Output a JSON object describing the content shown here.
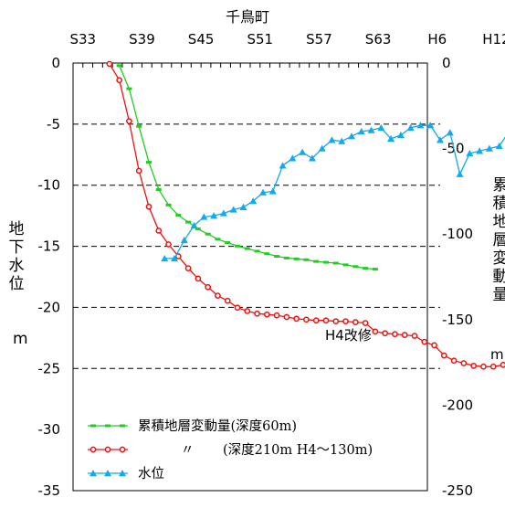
{
  "chart_data": {
    "type": "line",
    "title": "千鳥町",
    "top_ticks": [
      "S33",
      "S39",
      "S45",
      "S51",
      "S57",
      "S63",
      "H6",
      "H12"
    ],
    "left_axis": {
      "label_chars": [
        "地",
        "下",
        "水",
        "位"
      ],
      "unit": "m",
      "range": [
        -35,
        0
      ],
      "ticks": [
        "0",
        "-5",
        "-10",
        "-15",
        "-20",
        "-25",
        "-30",
        "-35"
      ]
    },
    "right_axis": {
      "label_chars": [
        "累",
        "積",
        "地",
        "層",
        "変",
        "動",
        "量"
      ],
      "unit": "mm",
      "range": [
        -250,
        0
      ],
      "ticks": [
        "0",
        "-50",
        "-100",
        "-150",
        "-200",
        "-250"
      ]
    },
    "x_range": [
      1957,
      1993
    ],
    "grid_y": [
      -5,
      -10,
      -15,
      -20,
      -25
    ],
    "annotation": "H4改修",
    "legend_position": "bottom-left",
    "series": [
      {
        "name": "累積地層変動量(深度60m)",
        "color": "#22cc22",
        "marker": "dash",
        "axis": "right",
        "x": [
          1961.7,
          1962.7,
          1963.7,
          1964.7,
          1965.7,
          1966.7,
          1967.7,
          1968.7,
          1969.7,
          1970.7,
          1971.7,
          1972.7,
          1973.7,
          1974.7,
          1975.7,
          1976.7,
          1977.7,
          1978.7,
          1979.7,
          1980.7,
          1981.7,
          1982.7,
          1983.7,
          1984.7,
          1985.7,
          1986.7,
          1987.7
        ],
        "y": [
          -1.5,
          -15,
          -37,
          -58,
          -74,
          -83,
          -89,
          -93,
          -97,
          -100,
          -103,
          -105,
          -107,
          -108.5,
          -110,
          -111.5,
          -113,
          -114,
          -114.5,
          -115,
          -116,
          -116.5,
          -117,
          -118,
          -119,
          -120,
          -120.5
        ]
      },
      {
        "name": "〃",
        "legend_detail": "(深度210m H4〜130m)",
        "color": "#ee1111",
        "marker": "circle",
        "axis": "right",
        "x": [
          1960.7,
          1961.7,
          1962.7,
          1963.7,
          1964.7,
          1965.7,
          1966.7,
          1967.7,
          1968.7,
          1969.7,
          1970.7,
          1971.7,
          1972.7,
          1973.7,
          1974.7,
          1975.7,
          1976.7,
          1977.7,
          1978.7,
          1979.7,
          1980.7,
          1981.7,
          1982.7,
          1983.7,
          1984.7,
          1985.7,
          1986.7,
          1987.7,
          1988.7,
          1989.7,
          1990.7,
          1991.7,
          1992.7,
          1993.7,
          1994.7,
          1995.7,
          1996.7,
          1997.7,
          1998.7,
          1999.7,
          2000.7,
          2001.7,
          2002.7,
          2003.7,
          2004.7,
          2005.7,
          2006.7,
          2007.7,
          2008.7,
          2009.7
        ],
        "y": [
          -0.5,
          -10,
          -34,
          -63,
          -84,
          -98,
          -106,
          -113,
          -120,
          -126,
          -131,
          -136,
          -139,
          -143,
          -145,
          -146.5,
          -147,
          -147.5,
          -148.5,
          -149.5,
          -150,
          -150.5,
          -150.5,
          -151,
          -151,
          -151.5,
          -152,
          -157,
          -158,
          -158.5,
          -159,
          -159.5,
          -163,
          -165,
          -171,
          -174,
          -175.5,
          -177,
          -177.5,
          -177.5,
          -176.5,
          -176.5,
          -176,
          -176,
          -176.5,
          -177,
          -178,
          -179,
          -180,
          -181
        ]
      },
      {
        "name": "水位",
        "color": "#11aaee",
        "marker": "triangle",
        "axis": "left",
        "x": [
          1966.3,
          1967.3,
          1968.3,
          1969.3,
          1970.3,
          1971.3,
          1972.3,
          1973.3,
          1974.3,
          1975.3,
          1976.3,
          1977.3,
          1978.3,
          1979.3,
          1980.3,
          1981.3,
          1982.3,
          1983.3,
          1984.3,
          1985.3,
          1986.3,
          1987.3,
          1988.3,
          1989.3,
          1990.3,
          1991.3,
          1992.3,
          1993.3,
          1994.3,
          1995.3,
          1996.3,
          1997.3,
          1998.3,
          1999.3,
          2000.3,
          2001.3,
          2002.3,
          2003.3,
          2004.3,
          2005.3,
          2006.3,
          2007.3,
          2008.3,
          2009.3,
          2010.3
        ],
        "y": [
          -16,
          -16,
          -14.5,
          -13.3,
          -12.6,
          -12.5,
          -12.3,
          -12,
          -11.8,
          -11.3,
          -10.6,
          -10.5,
          -8.4,
          -7.8,
          -7.3,
          -7.8,
          -7,
          -6.3,
          -6.4,
          -6,
          -5.6,
          -5.5,
          -5.3,
          -6.2,
          -5.9,
          -5.3,
          -5.1,
          -5.1,
          -6.3,
          -5.7,
          -9.1,
          -7.4,
          -7.2,
          -7,
          -6.8,
          -5.6,
          -5.1,
          -5,
          -4.6,
          -4.6,
          -4.7,
          -4.8,
          -5,
          -5,
          -4.9
        ]
      }
    ]
  }
}
